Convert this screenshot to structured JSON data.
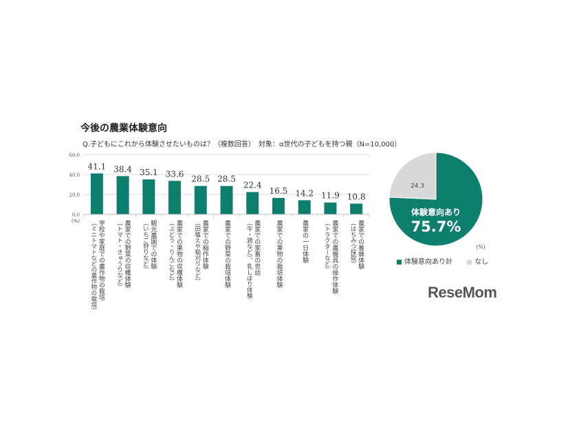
{
  "chart_data": [
    {
      "type": "bar",
      "title": "今後の農業体験意向",
      "subtitle": "Q.子どもにこれから体験させたいものは？（複数回答）　対象：α世代の子どもを持つ親（N=10,000）",
      "ylabel": "(%)",
      "ylim": [
        0,
        60
      ],
      "yticks": [
        "0.0",
        "20.0",
        "40.0",
        "60.0"
      ],
      "grid": true,
      "color": "#0e7f6c",
      "categories": [
        [
          "学校や家庭での農作物の栽培",
          "（ミニトマトなどの農作物の栽培）"
        ],
        [
          "農家での野菜の収穫体験",
          "（トマト・きゅうりなど）"
        ],
        [
          "観光農園での体験",
          "（いちご狩りなど）"
        ],
        [
          "農家での果物の収穫体験",
          "（ぶどう・りんごなど）"
        ],
        [
          "農家での稲作体験",
          "（田植えや稲刈りなど）"
        ],
        [
          "農家での野菜の栽培体験",
          ""
        ],
        [
          "農家での家畜の世話",
          "（牛・鶏など）、乳しぼり体験"
        ],
        [
          "農家での果物の栽培体験",
          ""
        ],
        [
          "農家の一日体験",
          ""
        ],
        [
          "農家での農機具の操作体験",
          "（トラクターなど）"
        ],
        [
          "農家での養蜂体験",
          "（はちみつ採取）"
        ]
      ],
      "values": [
        41.1,
        38.4,
        35.1,
        33.6,
        28.5,
        28.5,
        22.4,
        16.5,
        14.2,
        11.9,
        10.8
      ],
      "data_labels": [
        "41.1",
        "38.4",
        "35.1",
        "33.6",
        "28.5",
        "28.5",
        "22.4",
        "16.5",
        "14.2",
        "11.9",
        "10.8"
      ]
    },
    {
      "type": "pie",
      "unit": "(%)",
      "slices": [
        {
          "name": "体験意向あり計",
          "value": 75.7,
          "color": "#0e7f6c",
          "label_line1": "体験意向あり",
          "label_line2": "75.7%"
        },
        {
          "name": "なし",
          "value": 24.3,
          "color": "#d9d9d9",
          "label": "24.3"
        }
      ]
    }
  ],
  "logo": "ReseMom"
}
